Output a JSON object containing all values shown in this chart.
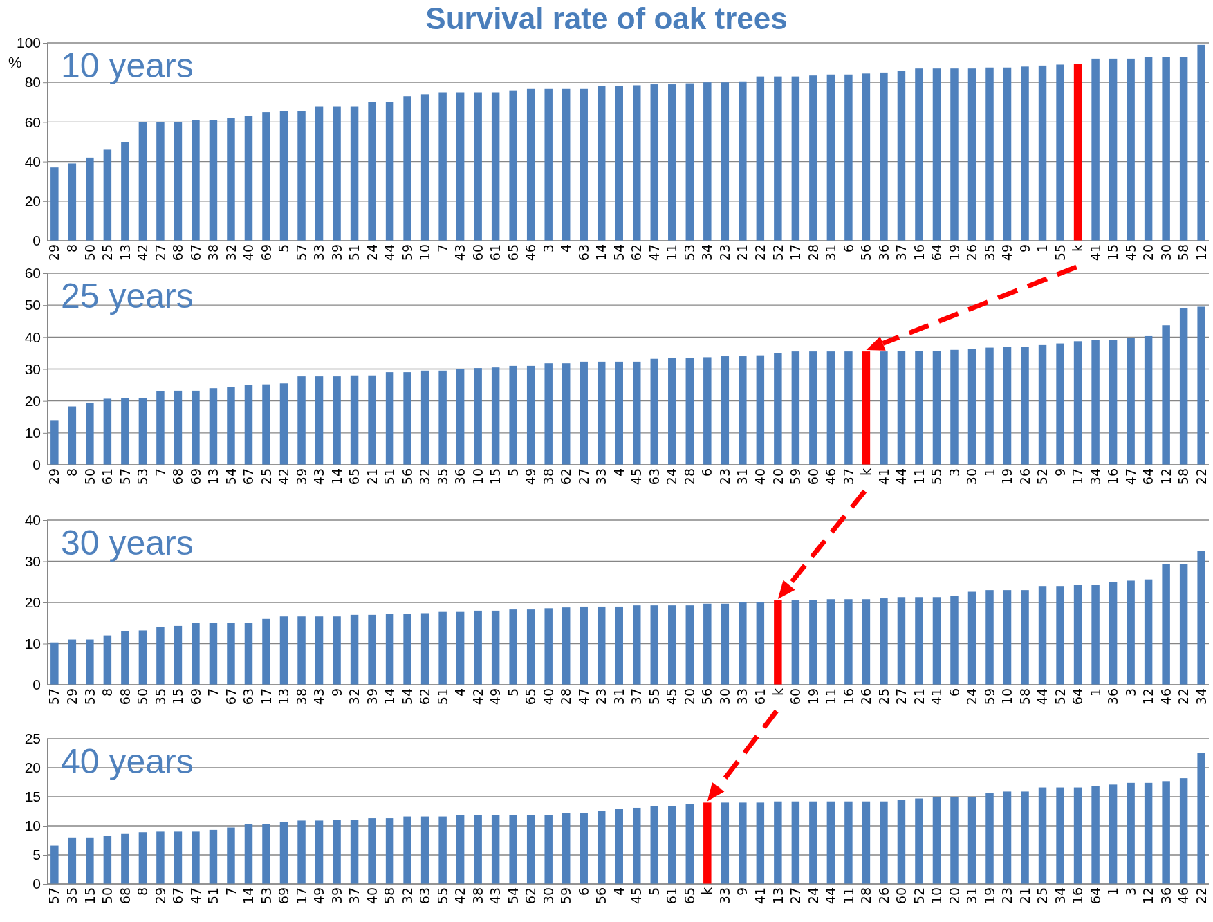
{
  "chart_data": [
    {
      "type": "bar",
      "title": "Survival rate of oak trees",
      "subtitle": "10 years",
      "ylabel": "%",
      "grid": "y",
      "ylim": [
        0,
        100
      ],
      "yticks": [
        0,
        20,
        40,
        60,
        80,
        100
      ],
      "categories": [
        "29",
        "8",
        "50",
        "25",
        "13",
        "42",
        "27",
        "68",
        "67",
        "38",
        "32",
        "40",
        "69",
        "5",
        "57",
        "33",
        "39",
        "51",
        "24",
        "44",
        "59",
        "10",
        "7",
        "43",
        "60",
        "61",
        "65",
        "46",
        "3",
        "4",
        "63",
        "14",
        "54",
        "62",
        "47",
        "11",
        "53",
        "34",
        "23",
        "21",
        "22",
        "52",
        "17",
        "28",
        "31",
        "6",
        "56",
        "36",
        "37",
        "16",
        "64",
        "19",
        "26",
        "35",
        "49",
        "9",
        "1",
        "55",
        "k",
        "41",
        "15",
        "45",
        "20",
        "30",
        "58",
        "12"
      ],
      "values": [
        37,
        39,
        42,
        46,
        50,
        60,
        60,
        60,
        61,
        61,
        62,
        63,
        65,
        65.5,
        65.5,
        68,
        68,
        68,
        70,
        70,
        73,
        74,
        75,
        75,
        75,
        75,
        76,
        77,
        77,
        77,
        77,
        78,
        78,
        78.5,
        79,
        79,
        79.5,
        80,
        80,
        80.5,
        83,
        83,
        83,
        83.5,
        84,
        84,
        84.5,
        85,
        86,
        87,
        87,
        87,
        87,
        87.5,
        87.5,
        88,
        88.5,
        89,
        89.5,
        92,
        92,
        92,
        93,
        93,
        93,
        99
      ],
      "colors": [
        "#4f81bd",
        "#4f81bd",
        "#4f81bd",
        "#4f81bd",
        "#4f81bd",
        "#4f81bd",
        "#4f81bd",
        "#4f81bd",
        "#4f81bd",
        "#4f81bd",
        "#4f81bd",
        "#4f81bd",
        "#4f81bd",
        "#4f81bd",
        "#4f81bd",
        "#4f81bd",
        "#4f81bd",
        "#4f81bd",
        "#4f81bd",
        "#4f81bd",
        "#4f81bd",
        "#4f81bd",
        "#4f81bd",
        "#4f81bd",
        "#4f81bd",
        "#4f81bd",
        "#4f81bd",
        "#4f81bd",
        "#4f81bd",
        "#4f81bd",
        "#4f81bd",
        "#4f81bd",
        "#4f81bd",
        "#4f81bd",
        "#4f81bd",
        "#4f81bd",
        "#4f81bd",
        "#4f81bd",
        "#4f81bd",
        "#4f81bd",
        "#4f81bd",
        "#4f81bd",
        "#4f81bd",
        "#4f81bd",
        "#4f81bd",
        "#4f81bd",
        "#4f81bd",
        "#4f81bd",
        "#4f81bd",
        "#4f81bd",
        "#4f81bd",
        "#4f81bd",
        "#4f81bd",
        "#4f81bd",
        "#4f81bd",
        "#4f81bd",
        "#4f81bd",
        "#4f81bd",
        "#ff0000",
        "#4f81bd",
        "#4f81bd",
        "#4f81bd",
        "#4f81bd",
        "#4f81bd",
        "#4f81bd",
        "#4f81bd"
      ]
    },
    {
      "type": "bar",
      "subtitle": "25 years",
      "grid": "y",
      "ylim": [
        0,
        60
      ],
      "yticks": [
        0,
        10,
        20,
        30,
        40,
        50,
        60
      ],
      "categories": [
        "29",
        "8",
        "50",
        "61",
        "57",
        "53",
        "7",
        "68",
        "69",
        "13",
        "54",
        "67",
        "25",
        "42",
        "39",
        "43",
        "14",
        "65",
        "21",
        "51",
        "56",
        "32",
        "35",
        "36",
        "10",
        "15",
        "5",
        "49",
        "38",
        "62",
        "27",
        "33",
        "4",
        "45",
        "63",
        "24",
        "28",
        "6",
        "23",
        "31",
        "40",
        "20",
        "59",
        "60",
        "46",
        "37",
        "k",
        "41",
        "44",
        "11",
        "55",
        "3",
        "30",
        "1",
        "19",
        "26",
        "52",
        "9",
        "17",
        "34",
        "16",
        "47",
        "64",
        "12",
        "58",
        "22"
      ],
      "values": [
        14,
        18.3,
        19.5,
        20.7,
        21,
        21,
        23,
        23.2,
        23.2,
        24,
        24.3,
        25,
        25.2,
        25.5,
        27.7,
        27.7,
        27.7,
        28,
        28,
        29,
        29,
        29.5,
        29.5,
        30,
        30.3,
        30.5,
        31,
        31,
        31.8,
        31.8,
        32.3,
        32.3,
        32.3,
        32.3,
        33.2,
        33.5,
        33.5,
        33.7,
        34,
        34,
        34.3,
        35,
        35.5,
        35.5,
        35.5,
        35.5,
        35.5,
        35.5,
        35.7,
        35.7,
        35.7,
        36,
        36.3,
        36.7,
        37,
        37,
        37.5,
        38,
        38.7,
        39,
        39,
        39.8,
        40.3,
        43.7,
        49,
        49.5
      ],
      "colors": [
        "#4f81bd",
        "#4f81bd",
        "#4f81bd",
        "#4f81bd",
        "#4f81bd",
        "#4f81bd",
        "#4f81bd",
        "#4f81bd",
        "#4f81bd",
        "#4f81bd",
        "#4f81bd",
        "#4f81bd",
        "#4f81bd",
        "#4f81bd",
        "#4f81bd",
        "#4f81bd",
        "#4f81bd",
        "#4f81bd",
        "#4f81bd",
        "#4f81bd",
        "#4f81bd",
        "#4f81bd",
        "#4f81bd",
        "#4f81bd",
        "#4f81bd",
        "#4f81bd",
        "#4f81bd",
        "#4f81bd",
        "#4f81bd",
        "#4f81bd",
        "#4f81bd",
        "#4f81bd",
        "#4f81bd",
        "#4f81bd",
        "#4f81bd",
        "#4f81bd",
        "#4f81bd",
        "#4f81bd",
        "#4f81bd",
        "#4f81bd",
        "#4f81bd",
        "#4f81bd",
        "#4f81bd",
        "#4f81bd",
        "#4f81bd",
        "#4f81bd",
        "#ff0000",
        "#4f81bd",
        "#4f81bd",
        "#4f81bd",
        "#4f81bd",
        "#4f81bd",
        "#4f81bd",
        "#4f81bd",
        "#4f81bd",
        "#4f81bd",
        "#4f81bd",
        "#4f81bd",
        "#4f81bd",
        "#4f81bd",
        "#4f81bd",
        "#4f81bd",
        "#4f81bd",
        "#4f81bd",
        "#4f81bd",
        "#4f81bd"
      ]
    },
    {
      "type": "bar",
      "subtitle": "30 years",
      "grid": "y",
      "ylim": [
        0,
        40
      ],
      "yticks": [
        0,
        10,
        20,
        30,
        40
      ],
      "categories": [
        "57",
        "29",
        "53",
        "8",
        "68",
        "50",
        "35",
        "15",
        "69",
        "7",
        "67",
        "63",
        "17",
        "13",
        "38",
        "43",
        "9",
        "32",
        "39",
        "14",
        "54",
        "62",
        "51",
        "4",
        "42",
        "49",
        "5",
        "65",
        "40",
        "28",
        "47",
        "23",
        "31",
        "37",
        "55",
        "45",
        "20",
        "56",
        "30",
        "33",
        "61",
        "k",
        "60",
        "19",
        "11",
        "16",
        "26",
        "25",
        "27",
        "21",
        "41",
        "6",
        "24",
        "59",
        "10",
        "58",
        "44",
        "52",
        "64",
        "1",
        "36",
        "3",
        "12",
        "46",
        "22",
        "34"
      ],
      "values": [
        10.3,
        11,
        11,
        12,
        13,
        13.2,
        14,
        14.3,
        15,
        15,
        15,
        15,
        16,
        16.6,
        16.6,
        16.6,
        16.6,
        17,
        17,
        17.2,
        17.2,
        17.4,
        17.7,
        17.7,
        18,
        18,
        18.3,
        18.3,
        18.6,
        18.8,
        19,
        19,
        19,
        19.3,
        19.3,
        19.3,
        19.3,
        19.7,
        19.7,
        20,
        20,
        20.5,
        20.5,
        20.6,
        20.8,
        20.8,
        20.8,
        21,
        21.3,
        21.3,
        21.3,
        21.6,
        22.6,
        23,
        23,
        23,
        24,
        24,
        24.2,
        24.2,
        25,
        25.3,
        25.6,
        29.3,
        29.3,
        32.6
      ],
      "colors": [
        "#4f81bd",
        "#4f81bd",
        "#4f81bd",
        "#4f81bd",
        "#4f81bd",
        "#4f81bd",
        "#4f81bd",
        "#4f81bd",
        "#4f81bd",
        "#4f81bd",
        "#4f81bd",
        "#4f81bd",
        "#4f81bd",
        "#4f81bd",
        "#4f81bd",
        "#4f81bd",
        "#4f81bd",
        "#4f81bd",
        "#4f81bd",
        "#4f81bd",
        "#4f81bd",
        "#4f81bd",
        "#4f81bd",
        "#4f81bd",
        "#4f81bd",
        "#4f81bd",
        "#4f81bd",
        "#4f81bd",
        "#4f81bd",
        "#4f81bd",
        "#4f81bd",
        "#4f81bd",
        "#4f81bd",
        "#4f81bd",
        "#4f81bd",
        "#4f81bd",
        "#4f81bd",
        "#4f81bd",
        "#4f81bd",
        "#4f81bd",
        "#4f81bd",
        "#ff0000",
        "#4f81bd",
        "#4f81bd",
        "#4f81bd",
        "#4f81bd",
        "#4f81bd",
        "#4f81bd",
        "#4f81bd",
        "#4f81bd",
        "#4f81bd",
        "#4f81bd",
        "#4f81bd",
        "#4f81bd",
        "#4f81bd",
        "#4f81bd",
        "#4f81bd",
        "#4f81bd",
        "#4f81bd",
        "#4f81bd",
        "#4f81bd",
        "#4f81bd",
        "#4f81bd",
        "#4f81bd",
        "#4f81bd",
        "#4f81bd"
      ]
    },
    {
      "type": "bar",
      "subtitle": "40 years",
      "grid": "y",
      "ylim": [
        0,
        25
      ],
      "yticks": [
        0,
        5,
        10,
        15,
        20,
        25
      ],
      "categories": [
        "57",
        "35",
        "15",
        "50",
        "68",
        "8",
        "29",
        "67",
        "47",
        "51",
        "7",
        "14",
        "53",
        "69",
        "17",
        "49",
        "39",
        "37",
        "40",
        "58",
        "32",
        "63",
        "55",
        "42",
        "38",
        "43",
        "54",
        "62",
        "30",
        "59",
        "6",
        "56",
        "4",
        "45",
        "5",
        "61",
        "65",
        "k",
        "33",
        "9",
        "41",
        "13",
        "27",
        "24",
        "44",
        "11",
        "28",
        "26",
        "60",
        "52",
        "10",
        "20",
        "31",
        "19",
        "23",
        "21",
        "25",
        "34",
        "16",
        "64",
        "1",
        "3",
        "12",
        "36",
        "46",
        "22"
      ],
      "values": [
        6.6,
        8,
        8,
        8.3,
        8.6,
        8.9,
        9,
        9,
        9,
        9.3,
        9.7,
        10.3,
        10.3,
        10.6,
        10.9,
        10.9,
        11,
        11,
        11.3,
        11.3,
        11.6,
        11.6,
        11.6,
        11.9,
        11.9,
        11.9,
        11.9,
        11.9,
        11.9,
        12.2,
        12.2,
        12.6,
        12.9,
        13.1,
        13.4,
        13.4,
        13.7,
        14,
        14,
        14,
        14,
        14.2,
        14.2,
        14.2,
        14.2,
        14.2,
        14.2,
        14.2,
        14.5,
        14.7,
        14.9,
        14.9,
        15,
        15.6,
        15.9,
        15.9,
        16.6,
        16.6,
        16.6,
        16.9,
        17.1,
        17.4,
        17.4,
        17.7,
        18.2,
        22.5
      ],
      "colors": [
        "#4f81bd",
        "#4f81bd",
        "#4f81bd",
        "#4f81bd",
        "#4f81bd",
        "#4f81bd",
        "#4f81bd",
        "#4f81bd",
        "#4f81bd",
        "#4f81bd",
        "#4f81bd",
        "#4f81bd",
        "#4f81bd",
        "#4f81bd",
        "#4f81bd",
        "#4f81bd",
        "#4f81bd",
        "#4f81bd",
        "#4f81bd",
        "#4f81bd",
        "#4f81bd",
        "#4f81bd",
        "#4f81bd",
        "#4f81bd",
        "#4f81bd",
        "#4f81bd",
        "#4f81bd",
        "#4f81bd",
        "#4f81bd",
        "#4f81bd",
        "#4f81bd",
        "#4f81bd",
        "#4f81bd",
        "#4f81bd",
        "#4f81bd",
        "#4f81bd",
        "#4f81bd",
        "#ff0000",
        "#4f81bd",
        "#4f81bd",
        "#4f81bd",
        "#4f81bd",
        "#4f81bd",
        "#4f81bd",
        "#4f81bd",
        "#4f81bd",
        "#4f81bd",
        "#4f81bd",
        "#4f81bd",
        "#4f81bd",
        "#4f81bd",
        "#4f81bd",
        "#4f81bd",
        "#4f81bd",
        "#4f81bd",
        "#4f81bd",
        "#4f81bd",
        "#4f81bd",
        "#4f81bd",
        "#4f81bd",
        "#4f81bd",
        "#4f81bd",
        "#4f81bd",
        "#4f81bd",
        "#4f81bd",
        "#4f81bd"
      ]
    }
  ]
}
